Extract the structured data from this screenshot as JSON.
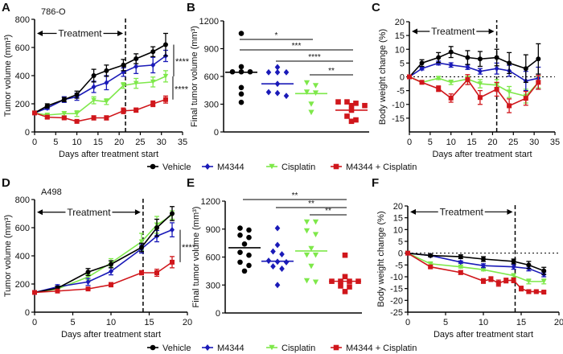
{
  "legend": [
    {
      "name": "Vehicle",
      "color": "#000000",
      "marker": "circle"
    },
    {
      "name": "M4344",
      "color": "#1a1ab8",
      "marker": "diamond"
    },
    {
      "name": "Cisplatin",
      "color": "#7ee84a",
      "marker": "triangle-down"
    },
    {
      "name": "M4344 + Cisplatin",
      "color": "#d0161b",
      "marker": "square"
    }
  ],
  "chart_data": [
    {
      "panel": "A",
      "type": "line",
      "subtitle": "786-O",
      "xlabel": "Days after treatment start",
      "ylabel": "Tumor volume (mm³)",
      "xlim": [
        0,
        35
      ],
      "xticks": [
        0,
        5,
        10,
        15,
        20,
        25,
        30,
        35
      ],
      "ylim": [
        0,
        800
      ],
      "yticks": [
        0,
        200,
        400,
        600,
        800
      ],
      "treatment": {
        "label": "Treatment",
        "end_day": 21.5,
        "arrow_y": 700
      },
      "x": [
        0,
        3,
        7,
        10,
        14,
        17,
        21,
        24,
        28,
        31
      ],
      "series": [
        {
          "name": "Vehicle",
          "values": [
            135,
            185,
            230,
            265,
            400,
            435,
            475,
            520,
            570,
            620
          ],
          "errors": [
            0,
            15,
            15,
            25,
            45,
            40,
            40,
            35,
            35,
            80
          ]
        },
        {
          "name": "M4344",
          "values": [
            135,
            170,
            230,
            250,
            320,
            350,
            425,
            465,
            475,
            540
          ],
          "errors": [
            0,
            10,
            20,
            25,
            40,
            50,
            30,
            50,
            55,
            40
          ]
        },
        {
          "name": "Cisplatin",
          "values": [
            135,
            120,
            130,
            130,
            225,
            215,
            330,
            345,
            355,
            395
          ],
          "errors": [
            0,
            10,
            15,
            20,
            25,
            20,
            20,
            35,
            35,
            40
          ]
        },
        {
          "name": "M4344 + Cisplatin",
          "values": [
            135,
            105,
            100,
            75,
            100,
            100,
            150,
            155,
            200,
            230
          ],
          "errors": [
            0,
            10,
            10,
            8,
            15,
            15,
            20,
            15,
            20,
            25
          ]
        }
      ],
      "significance": [
        {
          "from": "Vehicle",
          "to": "Cisplatin",
          "label": "****"
        },
        {
          "from": "Cisplatin",
          "to": "M4344 + Cisplatin",
          "label": "****"
        }
      ]
    },
    {
      "panel": "B",
      "type": "scatter",
      "ylabel": "Final tumor volume (mm³)",
      "ylim": [
        0,
        1200
      ],
      "yticks": [
        0,
        300,
        600,
        900,
        1200
      ],
      "categories": [
        "Vehicle",
        "M4344",
        "Cisplatin",
        "M4344 + Cisplatin"
      ],
      "points": [
        [
          1065,
          705,
          650,
          650,
          650,
          480,
          410,
          320
        ],
        [
          645,
          645,
          645,
          700,
          520,
          430,
          420,
          390
        ],
        [
          530,
          500,
          430,
          420,
          300,
          210
        ],
        [
          325,
          310,
          325,
          285,
          285,
          235,
          170,
          115,
          130
        ]
      ],
      "medians": [
        645,
        520,
        415,
        235
      ],
      "significance": [
        {
          "from": 0,
          "to": 2,
          "label": "*",
          "level": 1000
        },
        {
          "from": 0,
          "to": 3,
          "label": "***",
          "level": 887
        },
        {
          "from": 1,
          "to": 3,
          "label": "****",
          "level": 765
        },
        {
          "from": 2,
          "to": 3,
          "label": "**",
          "level": 617
        }
      ]
    },
    {
      "panel": "C",
      "type": "line",
      "xlabel": "Days after treatment start",
      "ylabel": "Body weight change (%)",
      "xlim": [
        0,
        35
      ],
      "xticks": [
        0,
        5,
        10,
        15,
        20,
        25,
        30,
        35
      ],
      "ylim": [
        -20,
        20
      ],
      "yticks": [
        -15,
        -10,
        -5,
        0,
        5,
        10,
        15,
        20
      ],
      "treatment": {
        "label": "Treatment",
        "end_day": 21,
        "arrow_y": 16.5
      },
      "zero_line": true,
      "x": [
        0,
        3,
        7,
        10,
        14,
        17,
        21,
        24,
        28,
        31
      ],
      "series": [
        {
          "name": "Vehicle",
          "values": [
            0,
            5,
            7,
            9,
            7,
            6.5,
            7,
            5,
            3,
            6.5
          ],
          "errors": [
            0,
            1.2,
            1.8,
            2,
            2.5,
            2.7,
            3,
            3.8,
            5,
            5.5
          ]
        },
        {
          "name": "M4344",
          "values": [
            0,
            3,
            5,
            4.3,
            3.5,
            2,
            3,
            2.2,
            -1.5,
            -0.5
          ],
          "errors": [
            0,
            0.5,
            0.7,
            0.8,
            0.8,
            1,
            2,
            2,
            3.5,
            4
          ]
        },
        {
          "name": "Cisplatin",
          "values": [
            0,
            -2,
            -0.5,
            -2,
            -0.8,
            -2.5,
            -3,
            -5.5,
            -7,
            -2
          ],
          "errors": [
            0,
            0.5,
            0.5,
            0.8,
            1,
            1.5,
            2,
            2,
            2.5,
            2
          ]
        },
        {
          "name": "M4344 + Cisplatin",
          "values": [
            0,
            -2,
            -4.3,
            -7.7,
            -1,
            -7.5,
            -4.5,
            -10.5,
            -7.8,
            -2
          ],
          "errors": [
            0,
            0.5,
            1,
            1.5,
            1.8,
            2.5,
            2.5,
            2.5,
            2.5,
            2.5
          ]
        }
      ]
    },
    {
      "panel": "D",
      "type": "line",
      "subtitle": "A498",
      "xlabel": "Days after treatment start",
      "ylabel": "Tumor volume (mm³)",
      "xlim": [
        0,
        20
      ],
      "xticks": [
        0,
        5,
        10,
        15,
        20
      ],
      "ylim": [
        0,
        800
      ],
      "yticks": [
        0,
        200,
        400,
        600,
        800
      ],
      "treatment": {
        "label": "Treatment",
        "end_day": 14.2,
        "arrow_y": 710
      },
      "x": [
        0,
        3,
        7,
        10,
        14,
        16,
        18
      ],
      "series": [
        {
          "name": "Vehicle",
          "values": [
            140,
            170,
            285,
            340,
            460,
            600,
            700
          ],
          "errors": [
            0,
            15,
            25,
            25,
            30,
            60,
            50
          ]
        },
        {
          "name": "M4344",
          "values": [
            140,
            180,
            215,
            290,
            450,
            540,
            585
          ],
          "errors": [
            0,
            15,
            25,
            25,
            30,
            40,
            50
          ]
        },
        {
          "name": "Cisplatin",
          "values": [
            140,
            165,
            250,
            350,
            500,
            620,
            690
          ],
          "errors": [
            0,
            10,
            20,
            30,
            60,
            60,
            30
          ]
        },
        {
          "name": "M4344 + Cisplatin",
          "values": [
            140,
            150,
            165,
            195,
            280,
            280,
            355
          ],
          "errors": [
            0,
            10,
            10,
            15,
            15,
            25,
            40
          ]
        }
      ],
      "significance": [
        {
          "from": "M4344",
          "to": "M4344 + Cisplatin",
          "label": "****"
        }
      ]
    },
    {
      "panel": "E",
      "type": "scatter",
      "ylabel": "Final tumor volume (mm³)",
      "ylim": [
        0,
        1200
      ],
      "yticks": [
        0,
        300,
        600,
        900,
        1200
      ],
      "categories": [
        "Vehicle",
        "M4344",
        "Cisplatin",
        "M4344 + Cisplatin"
      ],
      "points": [
        [
          890,
          910,
          810,
          835,
          740,
          650,
          620,
          545,
          510,
          450
        ],
        [
          910,
          730,
          660,
          630,
          560,
          545,
          550,
          500,
          475,
          300
        ],
        [
          975,
          975,
          840,
          880,
          690,
          620,
          620,
          500,
          330,
          345
        ],
        [
          620,
          390,
          340,
          340,
          340,
          340,
          290,
          280,
          230
        ]
      ],
      "medians": [
        700,
        555,
        665,
        340
      ],
      "significance": [
        {
          "from": 0,
          "to": 3,
          "label": "**",
          "level": 1217
        },
        {
          "from": 1,
          "to": 3,
          "label": "**",
          "level": 1131
        },
        {
          "from": 2,
          "to": 3,
          "label": "**",
          "level": 1053
        }
      ]
    },
    {
      "panel": "F",
      "type": "line",
      "xlabel": "Days after treatment start",
      "ylabel": "Body weight change (%)",
      "xlim": [
        0,
        20
      ],
      "xticks": [
        0,
        5,
        10,
        15,
        20
      ],
      "ylim": [
        -25,
        20
      ],
      "yticks": [
        -25,
        -20,
        -15,
        -10,
        -5,
        0,
        5,
        10,
        15,
        20
      ],
      "treatment": {
        "label": "Treatment",
        "end_day": 14.2,
        "arrow_y": 17.5
      },
      "zero_line": true,
      "x": [
        0,
        3,
        7,
        10,
        14,
        16,
        18
      ],
      "series": [
        {
          "name": "Vehicle",
          "values": [
            0,
            -1,
            -1.5,
            -2.5,
            -3.5,
            -5,
            -7.5
          ],
          "errors": [
            0,
            0.5,
            0.8,
            1,
            1,
            1.5,
            1.5
          ]
        },
        {
          "name": "M4344",
          "values": [
            0,
            -1,
            -3.8,
            -5.3,
            -5.8,
            -6.5,
            -9
          ],
          "errors": [
            0,
            0.5,
            0.5,
            0.8,
            1,
            1,
            1
          ]
        },
        {
          "name": "Cisplatin",
          "values": [
            0,
            -4.5,
            -5.8,
            -7,
            -9.5,
            -12,
            -12
          ],
          "errors": [
            0,
            0.5,
            0.5,
            0.5,
            0.8,
            1,
            1
          ]
        },
        {
          "name": "M4344 + Cisplatin",
          "x": [
            0,
            3,
            7,
            10,
            11,
            12,
            13,
            14,
            15,
            16,
            17,
            18
          ],
          "values": [
            0,
            -5.8,
            -8.2,
            -11.8,
            -11,
            -12.7,
            -11.6,
            -11.5,
            -15,
            -16.3,
            -16.3,
            -16.5
          ],
          "errors": [
            0,
            0.5,
            0.8,
            1,
            1,
            1.3,
            1,
            1,
            1,
            0.8,
            0.5,
            0.5
          ]
        }
      ]
    }
  ]
}
